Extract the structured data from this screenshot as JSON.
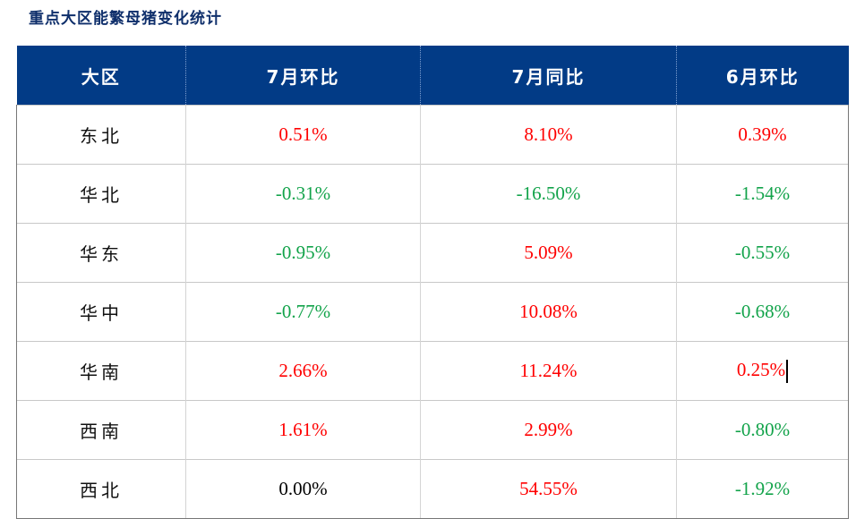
{
  "title": "重点大区能繁母猪变化统计",
  "table": {
    "headers": [
      "大区",
      "7月环比",
      "7月同比",
      "6月环比"
    ],
    "rows": [
      {
        "region": "东北",
        "jul_mom": "0.51%",
        "jul_yoy": "8.10%",
        "jun_mom": "0.39%"
      },
      {
        "region": "华北",
        "jul_mom": "-0.31%",
        "jul_yoy": "-16.50%",
        "jun_mom": "-1.54%"
      },
      {
        "region": "华东",
        "jul_mom": "-0.95%",
        "jul_yoy": "5.09%",
        "jun_mom": "-0.55%"
      },
      {
        "region": "华中",
        "jul_mom": "-0.77%",
        "jul_yoy": "10.08%",
        "jun_mom": "-0.68%"
      },
      {
        "region": "华南",
        "jul_mom": "2.66%",
        "jul_yoy": "11.24%",
        "jun_mom": "0.25%"
      },
      {
        "region": "西南",
        "jul_mom": "1.61%",
        "jul_yoy": "2.99%",
        "jun_mom": "-0.80%"
      },
      {
        "region": "西北",
        "jul_mom": "0.00%",
        "jul_yoy": "54.55%",
        "jun_mom": "-1.92%"
      }
    ]
  },
  "colors": {
    "header_bg": "#023b86",
    "title": "#0f2f6b",
    "positive": "#ff0000",
    "negative": "#12a34a",
    "neutral": "#000000"
  }
}
